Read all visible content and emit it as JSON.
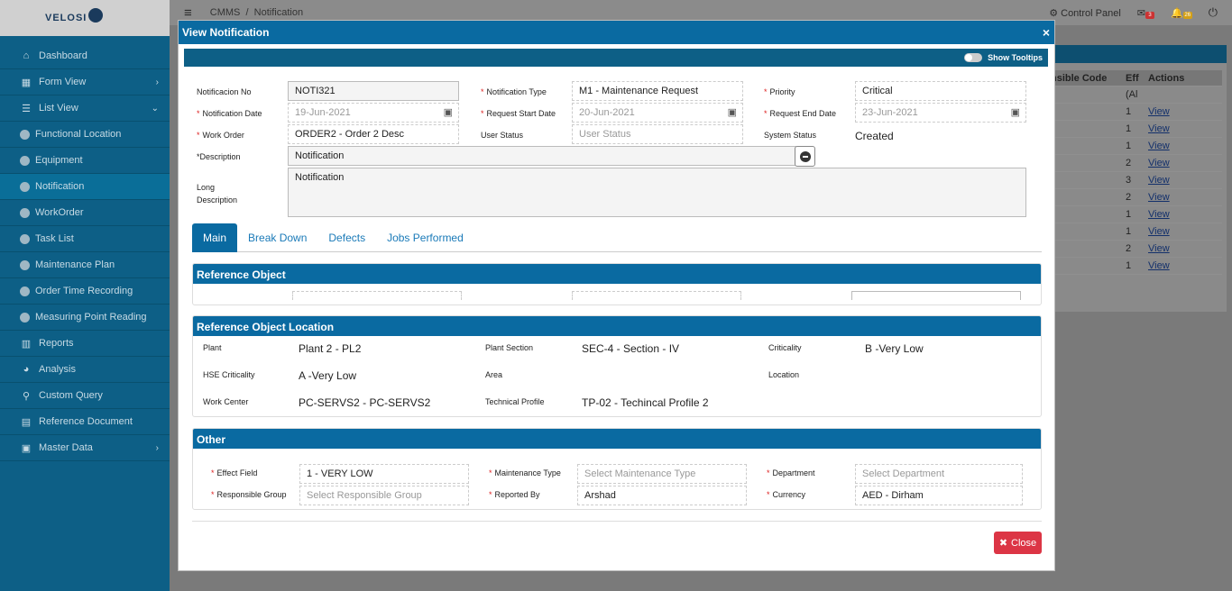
{
  "logo": {
    "text": "VELOSI"
  },
  "sidebar": {
    "items": [
      {
        "label": "Dashboard",
        "icon": "⌂"
      },
      {
        "label": "Form View",
        "icon": "▦",
        "chev": "›"
      },
      {
        "label": "List View",
        "icon": "☰",
        "chev": "⌄"
      },
      {
        "label": "Functional Location"
      },
      {
        "label": "Equipment"
      },
      {
        "label": "Notification"
      },
      {
        "label": "WorkOrder"
      },
      {
        "label": "Task List"
      },
      {
        "label": "Maintenance Plan"
      },
      {
        "label": "Order Time Recording"
      },
      {
        "label": "Measuring Point Reading"
      },
      {
        "label": "Reports",
        "icon": "▥"
      },
      {
        "label": "Analysis",
        "icon": "◕"
      },
      {
        "label": "Custom Query",
        "icon": "⚲"
      },
      {
        "label": "Reference Document",
        "icon": "▤"
      },
      {
        "label": "Master Data",
        "icon": "▣",
        "chev": "›"
      }
    ]
  },
  "topbar": {
    "menu_icon": "≡",
    "breadcrumb": "CMMS  /  Notification",
    "control_panel": "Control Panel",
    "messages_badge": "3",
    "alerts_badge": "26",
    "power_icon": "⏻"
  },
  "background_table": {
    "headers": [
      "nsible Code",
      "Eff",
      "Actions"
    ],
    "filter": "(Al",
    "rows": [
      {
        "eff": "1",
        "action": "View"
      },
      {
        "eff": "1",
        "action": "View"
      },
      {
        "eff": "1",
        "action": "View"
      },
      {
        "eff": "2",
        "action": "View"
      },
      {
        "eff": "3",
        "action": "View"
      },
      {
        "eff": "2",
        "action": "View"
      },
      {
        "eff": "1",
        "action": "View"
      },
      {
        "eff": "1",
        "action": "View"
      },
      {
        "eff": "2",
        "action": "View"
      },
      {
        "eff": "1",
        "action": "View"
      }
    ]
  },
  "modal": {
    "title": "View Notification",
    "close_icon": "×",
    "show_tooltips": "Show Tooltips",
    "fields": {
      "notification_no": {
        "label": "Notificacion No",
        "value": "NOTI321"
      },
      "notification_type": {
        "label": "Notification Type",
        "value": "M1 - Maintenance Request"
      },
      "priority": {
        "label": "Priority",
        "value": "Critical"
      },
      "notification_date": {
        "label": "Notification Date",
        "value": "19-Jun-2021"
      },
      "request_start_date": {
        "label": "Request Start Date",
        "value": "20-Jun-2021"
      },
      "request_end_date": {
        "label": "Request End Date",
        "value": "23-Jun-2021"
      },
      "work_order": {
        "label": "Work Order",
        "value": "ORDER2 - Order 2 Desc"
      },
      "user_status": {
        "label": "User Status",
        "placeholder": "User Status"
      },
      "system_status": {
        "label": "System Status",
        "value": "Created"
      },
      "description": {
        "label": "*Description",
        "value": "Notification"
      },
      "long_description": {
        "label": "Long Description",
        "value": "Notification"
      }
    },
    "tabs": [
      "Main",
      "Break Down",
      "Defects",
      "Jobs Performed"
    ],
    "reference_object": {
      "title": "Reference Object"
    },
    "reference_object_location": {
      "title": "Reference Object Location",
      "plant": {
        "label": "Plant",
        "value": "Plant 2 - PL2"
      },
      "plant_section": {
        "label": "Plant Section",
        "value": "SEC-4 - Section - IV"
      },
      "criticality": {
        "label": "Criticality",
        "value": "B -Very Low"
      },
      "hse_criticality": {
        "label": "HSE Criticality",
        "value": "A -Very Low"
      },
      "area": {
        "label": "Area",
        "value": ""
      },
      "location": {
        "label": "Location",
        "value": ""
      },
      "work_center": {
        "label": "Work Center",
        "value": "PC-SERVS2 - PC-SERVS2"
      },
      "technical_profile": {
        "label": "Technical Profile",
        "value": "TP-02 - Techincal Profile 2"
      }
    },
    "other": {
      "title": "Other",
      "effect_field": {
        "label": "Effect Field",
        "value": "1 - VERY LOW"
      },
      "maintenance_type": {
        "label": "Maintenance Type",
        "placeholder": "Select Maintenance Type"
      },
      "department": {
        "label": "Department",
        "placeholder": "Select Department"
      },
      "responsible_group": {
        "label": "Responsible Group",
        "placeholder": "Select Responsible Group"
      },
      "reported_by": {
        "label": "Reported By",
        "value": "Arshad"
      },
      "currency": {
        "label": "Currency",
        "value": "AED - Dirham"
      }
    },
    "close_button": "Close",
    "close_button_icon": "✖"
  }
}
